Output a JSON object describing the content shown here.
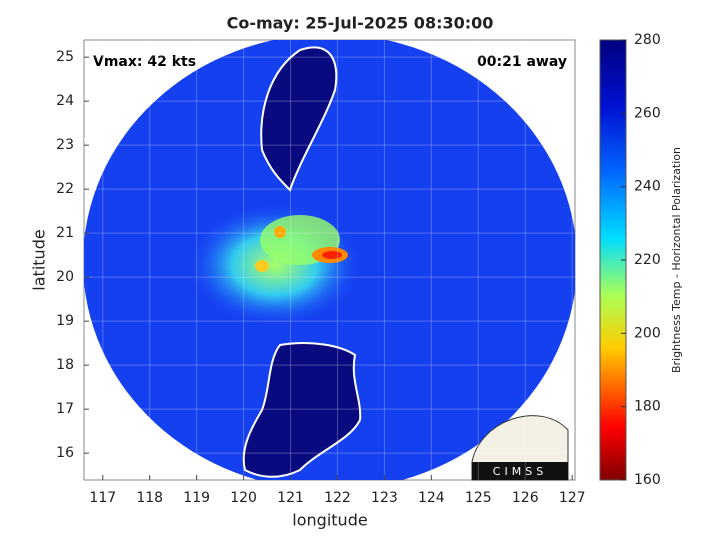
{
  "chart_data": {
    "type": "map",
    "title": "Co-may: 25-Jul-2025 08:30:00",
    "annotations": [
      "Vmax: 42 kts",
      "00:21 away"
    ],
    "xlabel": "longitude",
    "ylabel": "latitude",
    "xlim": [
      116.6,
      127.06
    ],
    "ylim": [
      15.39,
      25.39
    ],
    "xticks": [
      117,
      118,
      119,
      120,
      121,
      122,
      123,
      124,
      125,
      126,
      127
    ],
    "yticks": [
      16,
      17,
      18,
      19,
      20,
      21,
      22,
      23,
      24,
      25
    ],
    "grid": true,
    "colorbar": {
      "label": "Brightness Temp - Horizontal Polarization",
      "lim": [
        160,
        280
      ],
      "ticks": [
        160,
        180,
        200,
        220,
        240,
        260,
        280
      ]
    },
    "logo": "CIMSS"
  }
}
